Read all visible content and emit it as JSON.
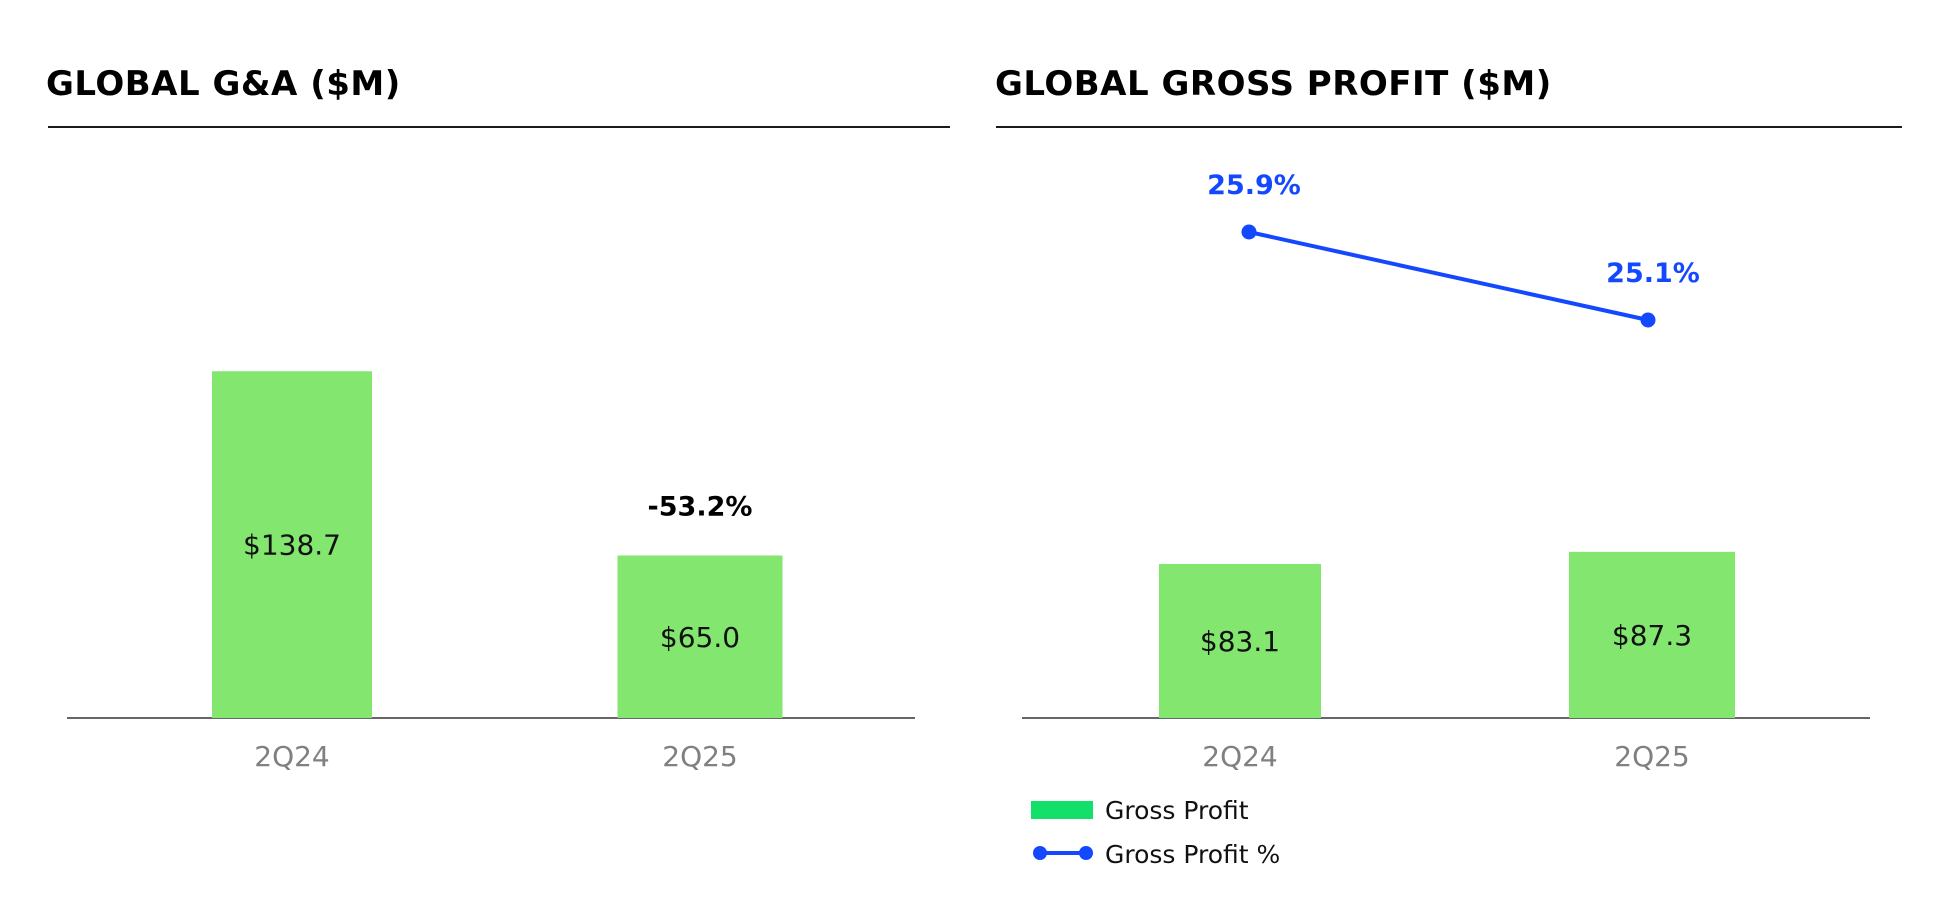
{
  "colors": {
    "bar": "#82e66f",
    "legend_bar": "#13e06a",
    "line": "#1348ff",
    "axis": "#333333"
  },
  "panels": {
    "left": {
      "title": "GLOBAL G&A ($M)"
    },
    "right": {
      "title": "GLOBAL GROSS PROFIT ($M)"
    }
  },
  "legend": {
    "bar_label": "Gross Profit",
    "line_label": "Gross Profit %",
    "bar_icon": "green-bar-swatch-icon",
    "line_icon": "blue-line-marker-icon"
  },
  "chart_data": [
    {
      "type": "bar",
      "title": "GLOBAL G&A ($M)",
      "categories": [
        "2Q24",
        "2Q25"
      ],
      "values": [
        138.7,
        65.0
      ],
      "value_labels": [
        "$138.7",
        "$65.0"
      ],
      "annotations": [
        {
          "category": "2Q25",
          "text": "-53.2%"
        }
      ],
      "xlabel": "",
      "ylabel": "",
      "grid": false,
      "legend": "none"
    },
    {
      "type": "bar",
      "title": "GLOBAL GROSS PROFIT ($M)",
      "categories": [
        "2Q24",
        "2Q25"
      ],
      "series": [
        {
          "name": "Gross Profit",
          "type": "bar",
          "values": [
            83.1,
            87.3
          ],
          "value_labels": [
            "$83.1",
            "$87.3"
          ]
        },
        {
          "name": "Gross Profit %",
          "type": "line",
          "values": [
            25.9,
            25.1
          ],
          "value_labels": [
            "25.9%",
            "25.1%"
          ]
        }
      ],
      "xlabel": "",
      "ylabel": "",
      "grid": false,
      "legend": "bottom-left"
    }
  ]
}
